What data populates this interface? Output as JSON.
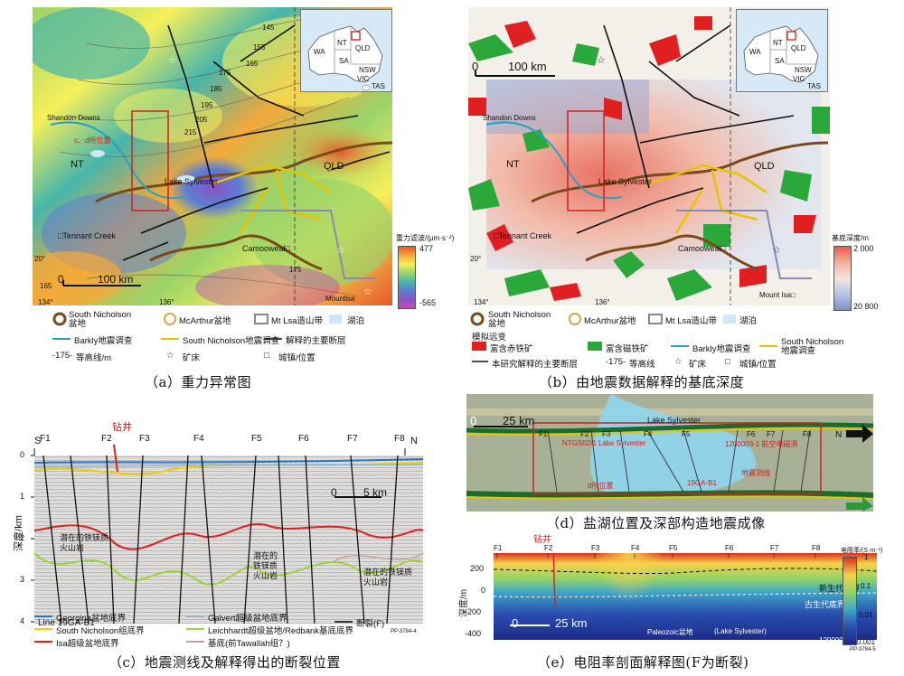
{
  "panel_a": {
    "caption": "（a）重力异常图",
    "labels": {
      "shandon": "Shandon Downs",
      "cd_pos": "c、d所位置",
      "nt": "NT",
      "qld": "QLD",
      "lake": "Lake Sylvester",
      "tennant": "□Tennant Creek",
      "camooweal": "Camooweal□",
      "mountisa": "Mountlsa",
      "scale": "100 km",
      "zero": "0",
      "lat20": "20°",
      "lon134": "134°",
      "lon136": "136°"
    },
    "contours": [
      "145",
      "155",
      "165",
      "175",
      "185",
      "195",
      "205",
      "215",
      "175",
      "165"
    ],
    "colorbar": {
      "title": "重力滤波/(μm·s⁻²)",
      "max": "477",
      "min": "-565",
      "stops": [
        "#e8562a",
        "#f3a93a",
        "#f6f05a",
        "#9ad36a",
        "#47b6a9",
        "#5b7fd3",
        "#8b52c4",
        "#c24bb3"
      ]
    },
    "legend": [
      {
        "icon": "south-nicholson",
        "text": "South Nicholson\n盆地"
      },
      {
        "icon": "mcarthur",
        "text": "McArthur盆地"
      },
      {
        "icon": "mtisa",
        "text": "Mt Lsa造山带"
      },
      {
        "icon": "lake",
        "text": "湖泊"
      },
      {
        "icon": "barkly",
        "text": "Barkly地震调查"
      },
      {
        "icon": "sn-survey",
        "text": "South Nicholson地震调查"
      },
      {
        "icon": "fault",
        "text": "解释的主要断层"
      },
      {
        "icon": "contour",
        "text": "等高线/m"
      },
      {
        "icon": "deposit",
        "text": "矿床"
      },
      {
        "icon": "town",
        "text": "城镇/位置"
      }
    ],
    "legend_contour_prefix": "-175-"
  },
  "panel_b": {
    "caption": "（b）由地震数据解释的基底深度",
    "labels": {
      "shandon": "Shandon Downs",
      "nt": "NT",
      "qld": "QLD",
      "lake": "Lake Sylvester",
      "tennant": "□Tennant Creek",
      "camooweal": "Camooweal□",
      "mountisa": "Mount Isa□",
      "scale": "100 km",
      "zero": "0",
      "lat20": "20°",
      "lon134": "134°",
      "lon136": "136°"
    },
    "colorbar": {
      "title": "基底深度/m",
      "top": "2 000",
      "bottom": "20 800"
    },
    "legend": [
      {
        "icon": "south-nicholson",
        "text": "South Nicholson\n盆地"
      },
      {
        "icon": "mcarthur",
        "text": "McArthur盆地"
      },
      {
        "icon": "mtisa",
        "text": "Mt Lsa造山带"
      },
      {
        "icon": "lake",
        "text": "湖泊"
      },
      {
        "icon": "title",
        "text": "模拟远变"
      },
      {
        "icon": "hematite",
        "text": "富含赤铁矿"
      },
      {
        "icon": "magnetite",
        "text": "富含磁铁矿"
      },
      {
        "icon": "barkly",
        "text": "Barkly地震调查"
      },
      {
        "icon": "sn-survey",
        "text": "South Nicholson\n地震调查"
      },
      {
        "icon": "fault",
        "text": "本研究解释的主要断层"
      },
      {
        "icon": "contour",
        "text": "等高线"
      },
      {
        "icon": "deposit",
        "text": "矿床"
      },
      {
        "icon": "town",
        "text": "城镇/位置"
      }
    ],
    "legend_contour_prefix": "-175-"
  },
  "inset": {
    "wa": "WA",
    "nt": "NT",
    "qld": "QLD",
    "sa": "SA",
    "nsw": "NSW",
    "vic": "VIC",
    "tas": "TAS"
  },
  "panel_c": {
    "caption": "（c）地震测线及解释得出的断裂位置",
    "drill": "钻井",
    "s": "S",
    "n": "N",
    "faults": [
      "F1",
      "F2",
      "F3",
      "F4",
      "F5",
      "F6",
      "F7",
      "F8"
    ],
    "yticks": [
      "0",
      "1",
      "2",
      "3",
      "4"
    ],
    "ylabel": "深度/km",
    "line": "Line 19GA-B1",
    "scale": "5 km",
    "zero": "0",
    "pp": "PP-3784-4",
    "annots": [
      "潜在的铁镁质\n火山岩",
      "潜在的\n铁镁质\n火山岩",
      "潜在的铁镁质\n火山岩"
    ],
    "legend": [
      {
        "color": "#1f77d0",
        "text": "Georgina盆地底界"
      },
      {
        "color": "#8fb4d8",
        "text": "Galvert超级盆地底界"
      },
      {
        "color": "#3a3a3a",
        "text": "断裂(F)"
      },
      {
        "color": "#f0d000",
        "text": "South Nicholson组底界"
      },
      {
        "color": "#9ad33a",
        "text": "Leichhardt超级盆地/Redbank基底底界"
      },
      {
        "color": "#e02020",
        "text": "Isa超级盆地底界"
      },
      {
        "color": "#c8a0a0",
        "text": "基底(前Tawallah组？)"
      }
    ]
  },
  "panel_d": {
    "caption": "（d）盐湖位置及深部构造地震成像",
    "zero": "0",
    "scale": "25 km",
    "lake": "Lake Sylvester",
    "faults": [
      "F1",
      "F2",
      "F3",
      "F4",
      "F5",
      "F6",
      "F7",
      "F8"
    ],
    "ntgs": "NTGS02/1 Lake Sylvester",
    "line2": "1200003-1 航空电磁测",
    "gaB1": "19GA-B1",
    "cd": "d所位置",
    "seismic": "地震测线",
    "n": "N"
  },
  "panel_e": {
    "caption": "（e）电阻率剖面解释图(F为断裂)",
    "drill": "钻井",
    "faults": [
      "F1",
      "F2",
      "F3",
      "F4",
      "F5",
      "F6",
      "F7",
      "F8"
    ],
    "yticks": [
      "200",
      "0",
      "-200",
      "-400"
    ],
    "ylabel": "深度/m",
    "cenozoic": "新生代底界",
    "paleo_base": "古生代底界",
    "paleozoic": "Paleozoic盆地",
    "lake": "(Lake Sylvester)",
    "zero": "0",
    "scale": "25 km",
    "line": "1200003-1",
    "pp": "PP-3784-5",
    "colorbar": {
      "title": "电阻率/(S·m⁻¹)",
      "ticks": [
        "1",
        "0.1",
        "0.01",
        "0.001"
      ]
    }
  }
}
